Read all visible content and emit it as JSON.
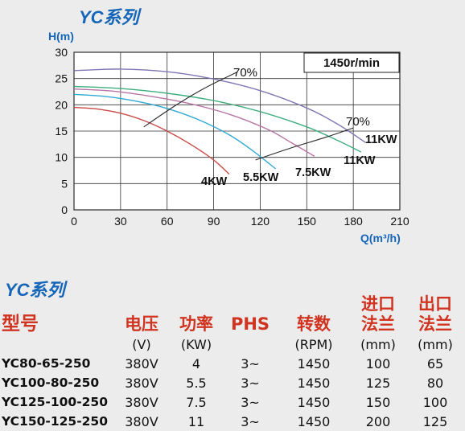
{
  "chart_title": "YC系列",
  "chart_data": {
    "type": "line",
    "ylabel": "H(m)",
    "xlabel": "Q(m³/h)",
    "xlim": [
      0,
      210
    ],
    "ylim": [
      0,
      30
    ],
    "xticks": [
      0,
      30,
      60,
      90,
      120,
      150,
      180,
      210
    ],
    "yticks": [
      0,
      5,
      10,
      15,
      20,
      25,
      30
    ],
    "grid": true,
    "speed_label": "1450r/min",
    "series": [
      {
        "name": "4KW",
        "color": "#c94a45",
        "x": [
          0,
          15,
          30,
          45,
          60,
          75,
          90,
          100
        ],
        "y": [
          19.5,
          19.2,
          18.4,
          17.0,
          15.0,
          12.5,
          9.5,
          6.8
        ]
      },
      {
        "name": "5.5KW",
        "color": "#32a9d3",
        "x": [
          0,
          20,
          40,
          60,
          80,
          100,
          115,
          130
        ],
        "y": [
          22.0,
          21.6,
          20.7,
          19.3,
          17.2,
          14.3,
          11.3,
          7.8
        ]
      },
      {
        "name": "7.5KW",
        "color": "#b874a6",
        "x": [
          0,
          25,
          50,
          75,
          100,
          125,
          140,
          155
        ],
        "y": [
          23.0,
          22.6,
          21.6,
          20.2,
          18.2,
          15.3,
          12.8,
          10.2
        ]
      },
      {
        "name": "11KW",
        "color": "#3fae7e",
        "x": [
          0,
          30,
          60,
          90,
          120,
          150,
          170,
          185
        ],
        "y": [
          23.5,
          23.1,
          22.2,
          20.8,
          18.7,
          15.8,
          13.2,
          11.0
        ]
      },
      {
        "name": "11KW",
        "color": "#7f78b4",
        "x": [
          0,
          30,
          60,
          90,
          120,
          150,
          170,
          188
        ],
        "y": [
          26.5,
          26.8,
          26.3,
          24.9,
          22.7,
          19.4,
          16.3,
          12.8
        ]
      }
    ],
    "efficiency_lines": [
      {
        "label": "70%",
        "x": [
          45,
          65,
          85,
          105
        ],
        "y": [
          15.8,
          19.8,
          23.3,
          26.2
        ]
      },
      {
        "label": "70%",
        "x": [
          117,
          140,
          162,
          180
        ],
        "y": [
          9.5,
          11.8,
          13.8,
          15.6
        ]
      }
    ]
  },
  "table": {
    "title": "YC系列",
    "headers": [
      {
        "line1": "型号",
        "line2": ""
      },
      {
        "line1": "电压",
        "line2": ""
      },
      {
        "line1": "功率",
        "line2": ""
      },
      {
        "line1": "PHS",
        "line2": ""
      },
      {
        "line1": "转数",
        "line2": ""
      },
      {
        "line1": "进口",
        "line2": "法兰"
      },
      {
        "line1": "出口",
        "line2": "法兰"
      }
    ],
    "units": [
      "",
      "(V)",
      "(KW)",
      "",
      "(RPM)",
      "(mm)",
      "(mm)"
    ],
    "rows": [
      [
        "YC80-65-250",
        "380V",
        "4",
        "3~",
        "1450",
        "100",
        "65"
      ],
      [
        "YC100-80-250",
        "380V",
        "5.5",
        "3~",
        "1450",
        "125",
        "80"
      ],
      [
        "YC125-100-250",
        "380V",
        "7.5",
        "3~",
        "1450",
        "150",
        "100"
      ],
      [
        "YC150-125-250",
        "380V",
        "11",
        "3~",
        "1450",
        "200",
        "125"
      ]
    ]
  }
}
